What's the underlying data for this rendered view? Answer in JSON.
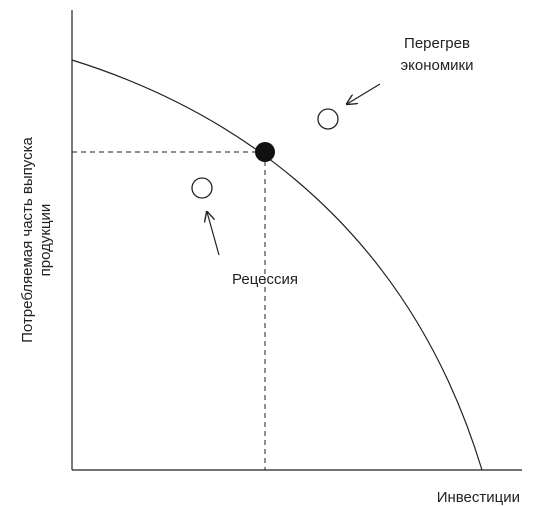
{
  "y_axis_label": [
    "Потребляемая часть выпуска",
    "продукции"
  ],
  "x_axis_label": "Инвестиции",
  "annotations": {
    "overheating": [
      "Перегрев",
      "экономики"
    ],
    "recession": "Рецессия"
  }
}
